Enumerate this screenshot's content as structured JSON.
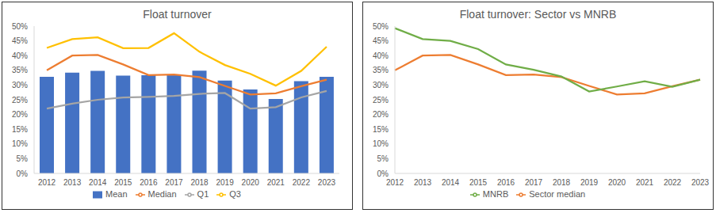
{
  "chart_data": [
    {
      "type": "bar",
      "title": "Float turnover",
      "categories": [
        "2012",
        "2013",
        "2014",
        "2015",
        "2016",
        "2017",
        "2018",
        "2019",
        "2020",
        "2021",
        "2022",
        "2023"
      ],
      "series": [
        {
          "name": "Mean",
          "type": "bar",
          "color": "#4472c4",
          "values": [
            32.8,
            34.2,
            34.8,
            33.2,
            33.3,
            33.3,
            34.9,
            31.5,
            28.5,
            25.3,
            31.3,
            32.8
          ]
        },
        {
          "name": "Median",
          "type": "line",
          "color": "#ed7d31",
          "values": [
            35,
            40,
            40.2,
            37,
            33.4,
            33.6,
            32.7,
            29.7,
            26.8,
            27.2,
            29.6,
            31.8
          ]
        },
        {
          "name": "Q1",
          "type": "line",
          "color": "#a5a5a5",
          "values": [
            22,
            23.7,
            25,
            25.8,
            26,
            26.3,
            27,
            27.3,
            22,
            22.5,
            25.8,
            28
          ]
        },
        {
          "name": "Q3",
          "type": "line",
          "color": "#ffc000",
          "values": [
            42.6,
            45.6,
            46.2,
            42.5,
            42.6,
            47.6,
            41.3,
            36.8,
            33.8,
            29.8,
            34.8,
            43
          ]
        }
      ],
      "ylim": [
        0,
        50
      ],
      "yticks": [
        {
          "value": 0,
          "label": "0%"
        },
        {
          "value": 5,
          "label": "5%"
        },
        {
          "value": 10,
          "label": "10%"
        },
        {
          "value": 15,
          "label": "15%"
        },
        {
          "value": 20,
          "label": "20%"
        },
        {
          "value": 25,
          "label": "25%"
        },
        {
          "value": 30,
          "label": "30%"
        },
        {
          "value": 35,
          "label": "35%"
        },
        {
          "value": 40,
          "label": "40%"
        },
        {
          "value": 45,
          "label": "45%"
        },
        {
          "value": 50,
          "label": "50%"
        }
      ],
      "grid": false,
      "legend": "bottom"
    },
    {
      "type": "line",
      "title": "Float turnover: Sector vs MNRB",
      "categories": [
        "2012",
        "2013",
        "2014",
        "2015",
        "2016",
        "2017",
        "2018",
        "2019",
        "2020",
        "2021",
        "2022",
        "2023"
      ],
      "series": [
        {
          "name": "Sector median",
          "color": "#ed7d31",
          "values": [
            35,
            40,
            40.2,
            37,
            33.4,
            33.6,
            32.7,
            29.7,
            26.8,
            27.2,
            29.6,
            31.8
          ]
        },
        {
          "name": "MNRB",
          "color": "#70ad47",
          "values": [
            49.3,
            45.6,
            45,
            42.2,
            37,
            35.2,
            32.9,
            27.8,
            29.5,
            31.3,
            29.4,
            31.8
          ]
        }
      ],
      "ylim": [
        0,
        50
      ],
      "yticks": [
        {
          "value": 0,
          "label": "0%"
        },
        {
          "value": 5,
          "label": "5%"
        },
        {
          "value": 10,
          "label": "10%"
        },
        {
          "value": 15,
          "label": "15%"
        },
        {
          "value": 20,
          "label": "20%"
        },
        {
          "value": 25,
          "label": "25%"
        },
        {
          "value": 30,
          "label": "30%"
        },
        {
          "value": 35,
          "label": "35%"
        },
        {
          "value": 40,
          "label": "40%"
        },
        {
          "value": 45,
          "label": "45%"
        },
        {
          "value": 50,
          "label": "50%"
        }
      ],
      "grid": false,
      "legend": "bottom"
    }
  ]
}
